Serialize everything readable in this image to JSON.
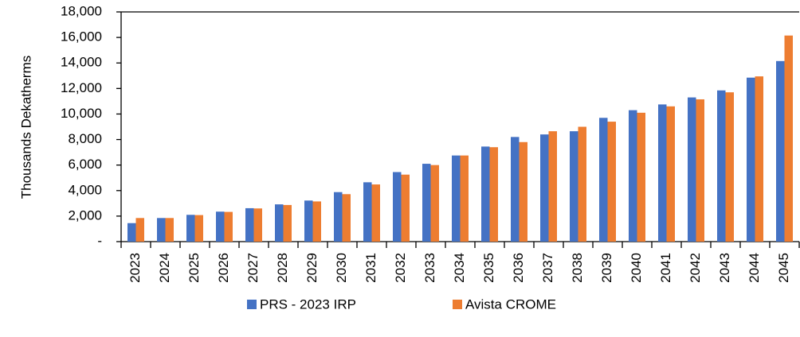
{
  "chart_data": {
    "type": "bar",
    "y_label": "Thousands Dekatherms",
    "categories": [
      "2023",
      "2024",
      "2025",
      "2026",
      "2027",
      "2028",
      "2029",
      "2030",
      "2031",
      "2032",
      "2033",
      "2034",
      "2035",
      "2036",
      "2037",
      "2038",
      "2039",
      "2040",
      "2041",
      "2042",
      "2043",
      "2044",
      "2045"
    ],
    "series": [
      {
        "name": "PRS - 2023 IRP",
        "color": "#4472c4",
        "values": [
          1450,
          1850,
          2100,
          2350,
          2620,
          2920,
          3220,
          3880,
          4650,
          5450,
          6100,
          6750,
          7450,
          8200,
          8400,
          8650,
          9700,
          10300,
          10750,
          11300,
          11850,
          12850,
          14150
        ]
      },
      {
        "name": "Avista CROME",
        "color": "#ed7d31",
        "values": [
          1850,
          1850,
          2080,
          2330,
          2600,
          2870,
          3150,
          3720,
          4480,
          5250,
          6000,
          6750,
          7400,
          7800,
          8650,
          9000,
          9400,
          10100,
          10600,
          11150,
          11700,
          12950,
          16150
        ]
      }
    ],
    "ylim": [
      0,
      18000
    ],
    "yticks": [
      {
        "value": 0,
        "label": "-"
      },
      {
        "value": 2000,
        "label": "2,000"
      },
      {
        "value": 4000,
        "label": "4,000"
      },
      {
        "value": 6000,
        "label": "6,000"
      },
      {
        "value": 8000,
        "label": "8,000"
      },
      {
        "value": 10000,
        "label": "10,000"
      },
      {
        "value": 12000,
        "label": "12,000"
      },
      {
        "value": 14000,
        "label": "14,000"
      },
      {
        "value": 16000,
        "label": "16,000"
      },
      {
        "value": 18000,
        "label": "18,000"
      }
    ],
    "grid": false,
    "legend": "bottom"
  }
}
